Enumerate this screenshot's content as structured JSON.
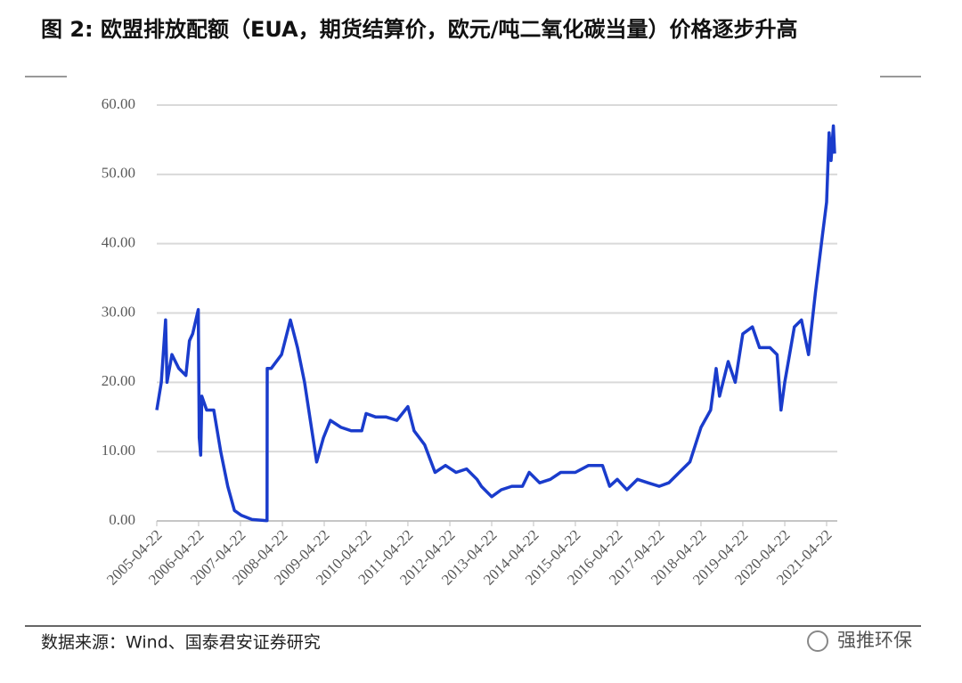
{
  "chart_data": {
    "type": "line",
    "title": "图 2:  欧盟排放配额（EUA，期货结算价，欧元/吨二氧化碳当量）价格逐步升高",
    "source": "数据来源：Wind、国泰君安证券研究",
    "watermark": "强推环保",
    "color": "#1a3ccc",
    "x": [
      "2005-04-22",
      "2005-06-01",
      "2005-07-08",
      "2005-07-20",
      "2005-09-01",
      "2005-11-01",
      "2006-01-01",
      "2006-02-01",
      "2006-03-01",
      "2006-04-19",
      "2006-04-28",
      "2006-05-10",
      "2006-05-20",
      "2006-07-01",
      "2006-09-01",
      "2006-11-01",
      "2007-01-01",
      "2007-03-01",
      "2007-05-01",
      "2007-08-01",
      "2007-12-01",
      "2007-12-10",
      "2007-12-12",
      "2008-01-15",
      "2008-04-15",
      "2008-07-01",
      "2008-09-01",
      "2008-11-01",
      "2009-02-15",
      "2009-04-15",
      "2009-06-15",
      "2009-09-15",
      "2009-12-15",
      "2010-03-15",
      "2010-04-22",
      "2010-07-15",
      "2010-10-15",
      "2011-01-15",
      "2011-04-22",
      "2011-06-15",
      "2011-09-15",
      "2011-12-15",
      "2012-03-15",
      "2012-06-15",
      "2012-09-15",
      "2012-12-15",
      "2013-01-22",
      "2013-04-22",
      "2013-07-15",
      "2013-10-15",
      "2014-01-15",
      "2014-03-15",
      "2014-06-15",
      "2014-09-15",
      "2014-12-15",
      "2015-04-22",
      "2015-08-15",
      "2015-12-15",
      "2016-02-15",
      "2016-04-22",
      "2016-07-15",
      "2016-10-15",
      "2017-01-15",
      "2017-04-22",
      "2017-07-15",
      "2017-10-15",
      "2018-01-15",
      "2018-04-22",
      "2018-07-15",
      "2018-09-01",
      "2018-10-01",
      "2018-12-15",
      "2019-02-15",
      "2019-04-22",
      "2019-07-15",
      "2019-09-15",
      "2019-12-15",
      "2020-02-15",
      "2020-03-20",
      "2020-04-22",
      "2020-07-15",
      "2020-09-15",
      "2020-11-15",
      "2021-01-15",
      "2021-03-15",
      "2021-04-22",
      "2021-05-14",
      "2021-05-31",
      "2021-06-20",
      "2021-07-01"
    ],
    "values": [
      16,
      20,
      29,
      20,
      24,
      22,
      21,
      26,
      27,
      30.5,
      12,
      9.5,
      18,
      16,
      16,
      10,
      5,
      1.5,
      0.8,
      0.2,
      0.05,
      0.05,
      22,
      22,
      24,
      29,
      25,
      20,
      8.5,
      12,
      14.5,
      13.5,
      13,
      13,
      15.5,
      15,
      15,
      14.5,
      16.5,
      13,
      11,
      7,
      8,
      7,
      7.5,
      6,
      5,
      3.5,
      4.5,
      5,
      5,
      7,
      5.5,
      6,
      7,
      7,
      8,
      8,
      5,
      6,
      4.5,
      6,
      5.5,
      5,
      5.5,
      7,
      8.5,
      13.5,
      16,
      22,
      18,
      23,
      20,
      27,
      28,
      25,
      25,
      24,
      16,
      20,
      28,
      29,
      24,
      33,
      41,
      46,
      56,
      52,
      57,
      53
    ],
    "xlim": [
      "2005-04-22",
      "2021-07-10"
    ],
    "xticks": [
      "2005-04-22",
      "2006-04-22",
      "2007-04-22",
      "2008-04-22",
      "2009-04-22",
      "2010-04-22",
      "2011-04-22",
      "2012-04-22",
      "2013-04-22",
      "2014-04-22",
      "2015-04-22",
      "2016-04-22",
      "2017-04-22",
      "2018-04-22",
      "2019-04-22",
      "2020-04-22",
      "2021-04-22"
    ],
    "ylim": [
      0,
      60
    ],
    "yticks": [
      {
        "value": 0,
        "label": "0.00"
      },
      {
        "value": 10,
        "label": "10.00"
      },
      {
        "value": 20,
        "label": "20.00"
      },
      {
        "value": 30,
        "label": "30.00"
      },
      {
        "value": 40,
        "label": "40.00"
      },
      {
        "value": 50,
        "label": "50.00"
      },
      {
        "value": 60,
        "label": "60.00"
      }
    ],
    "grid": true
  }
}
